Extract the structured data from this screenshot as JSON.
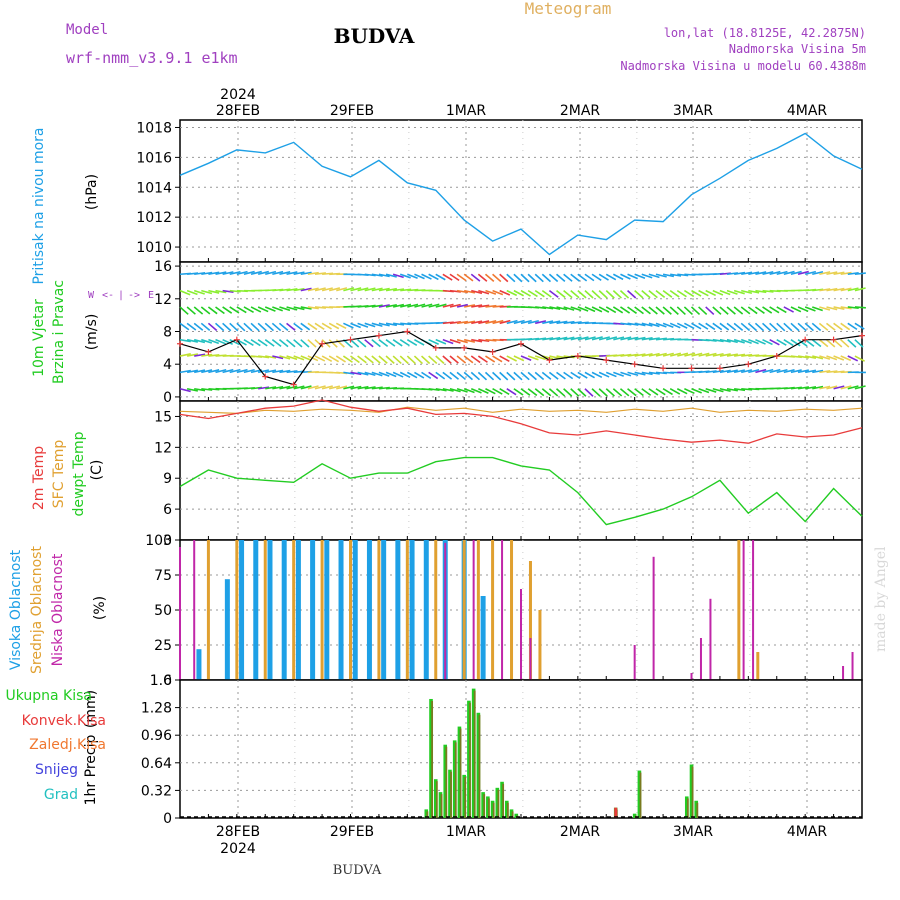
{
  "header": {
    "model_label": "Model",
    "model_name": "wrf-nmm_v3.9.1 e1km",
    "station": "BUDVA",
    "product": "Meteogram",
    "lonlat": "lon,lat (18.8125E, 42.2875N)",
    "elevation": "Nadmorska Visina 5m",
    "model_elevation": "Nadmorska Visina u modelu 60.4388m",
    "footer_station": "BUDVA",
    "watermark": "made by Angel",
    "year_label": "2024"
  },
  "colors": {
    "pressure": "#1ea0e6",
    "t2m": "#e83b3b",
    "sfc": "#e0a030",
    "dewpt": "#22cc22",
    "high_cloud": "#1ea0e6",
    "mid_cloud": "#e0a030",
    "low_cloud": "#c026a8",
    "total_precip": "#22cc22",
    "conv_precip": "#e83b3b",
    "frozen_precip": "#f07830",
    "snow": "#4444dd",
    "grad": "#22c0c0",
    "model_text": "#a040c0",
    "meteogram_title": "#e0b060"
  },
  "chart_data": {
    "type": "line",
    "x_axis": {
      "dates": [
        "28FEB",
        "29FEB",
        "1MAR",
        "2MAR",
        "3MAR",
        "4MAR"
      ],
      "year": "2024",
      "start": "2024-02-27 12:00",
      "end": "2024-03-04 12:00"
    },
    "panels": [
      {
        "id": "pressure",
        "ylabel": "Pritisak na nivou mora",
        "unit": "(hPa)",
        "ylim": [
          1009,
          1018.5
        ],
        "yticks": [
          1010,
          1012,
          1014,
          1016,
          1018
        ],
        "series": [
          {
            "name": "Pritisak na nivou mora",
            "x_hours": [
              0,
              6,
              12,
              18,
              24,
              30,
              36,
              42,
              48,
              54,
              60,
              66,
              72,
              78,
              84,
              90,
              96,
              102,
              108,
              114,
              120,
              126,
              132,
              138,
              144
            ],
            "values": [
              1014.8,
              1015.6,
              1016.5,
              1016.3,
              1017.0,
              1015.4,
              1014.7,
              1015.8,
              1014.3,
              1013.8,
              1011.8,
              1010.4,
              1011.2,
              1009.5,
              1010.8,
              1010.5,
              1011.8,
              1011.7,
              1013.5,
              1014.6,
              1015.8,
              1016.6,
              1017.6,
              1016.1,
              1015.2
            ]
          }
        ]
      },
      {
        "id": "wind",
        "ylabel_1": "10m Vjetar",
        "ylabel_2": "Brzina i Pravac",
        "unit": "(m/s)",
        "direction_labels": [
          "W",
          "<-",
          "|",
          "->",
          "E"
        ],
        "ylim": [
          -0.5,
          16.5
        ],
        "yticks": [
          0,
          4,
          8,
          12,
          16
        ],
        "series": [
          {
            "name": "Brzina",
            "x_hours": [
              0,
              6,
              12,
              18,
              24,
              30,
              36,
              42,
              48,
              54,
              60,
              66,
              72,
              78,
              84,
              90,
              96,
              102,
              108,
              114,
              120,
              126,
              132,
              138,
              144
            ],
            "values": [
              6.5,
              5.5,
              7.0,
              2.5,
              1.5,
              6.5,
              7.0,
              7.5,
              8.0,
              6.0,
              6.0,
              5.5,
              6.5,
              4.5,
              5.0,
              4.5,
              4.0,
              3.5,
              3.5,
              3.5,
              4.0,
              5.0,
              7.0,
              7.0,
              7.5
            ]
          }
        ]
      },
      {
        "id": "temperature",
        "ylabel_1": "2m Temp",
        "ylabel_2": "SFC Temp",
        "ylabel_3": "dewpt Temp",
        "unit": "(C)",
        "ylim": [
          3,
          16.5
        ],
        "yticks": [
          3,
          6,
          9,
          12,
          15
        ],
        "series": [
          {
            "name": "2m Temp",
            "x_hours": [
              0,
              6,
              12,
              18,
              24,
              30,
              36,
              42,
              48,
              54,
              60,
              66,
              72,
              78,
              84,
              90,
              96,
              102,
              108,
              114,
              120,
              126,
              132,
              138,
              144
            ],
            "values": [
              15.2,
              14.8,
              15.3,
              15.8,
              16.0,
              16.6,
              15.9,
              15.5,
              15.8,
              15.2,
              15.3,
              15.0,
              14.3,
              13.4,
              13.2,
              13.6,
              13.2,
              12.8,
              12.5,
              12.7,
              12.4,
              13.3,
              13.0,
              13.2,
              13.9
            ]
          },
          {
            "name": "SFC Temp",
            "x_hours": [
              0,
              6,
              12,
              18,
              24,
              30,
              36,
              42,
              48,
              54,
              60,
              66,
              72,
              78,
              84,
              90,
              96,
              102,
              108,
              114,
              120,
              126,
              132,
              138,
              144
            ],
            "values": [
              15.5,
              15.4,
              15.3,
              15.6,
              15.5,
              15.7,
              15.6,
              15.4,
              15.9,
              15.6,
              15.8,
              15.4,
              15.7,
              15.5,
              15.6,
              15.4,
              15.7,
              15.5,
              15.8,
              15.4,
              15.6,
              15.5,
              15.7,
              15.6,
              15.8
            ]
          },
          {
            "name": "dewpt Temp",
            "x_hours": [
              0,
              6,
              12,
              18,
              24,
              30,
              36,
              42,
              48,
              54,
              60,
              66,
              72,
              78,
              84,
              90,
              96,
              102,
              108,
              114,
              120,
              126,
              132,
              138,
              144
            ],
            "values": [
              8.2,
              9.8,
              9.0,
              8.8,
              8.6,
              10.4,
              9.0,
              9.5,
              9.5,
              10.6,
              11.0,
              11.0,
              10.2,
              9.8,
              7.6,
              4.5,
              5.2,
              6.0,
              7.2,
              8.8,
              5.6,
              7.6,
              4.8,
              8.0,
              5.3
            ]
          }
        ]
      },
      {
        "id": "cloud",
        "ylabel_1": "Visoka Oblacnost",
        "ylabel_2": "Srednja Oblacnost",
        "ylabel_3": "Niska Oblacnost",
        "unit": "(%)",
        "ylim": [
          0,
          100
        ],
        "yticks": [
          0,
          25,
          50,
          75,
          100
        ],
        "series": [
          {
            "name": "Visoka Oblacnost",
            "x_hours": [
              4,
              10,
              13,
              16,
              19,
              22,
              25,
              28,
              31,
              34,
              37,
              40,
              43,
              46,
              49,
              52,
              56,
              60,
              64
            ],
            "values": [
              22,
              72,
              100,
              100,
              100,
              100,
              100,
              100,
              100,
              100,
              100,
              100,
              100,
              100,
              100,
              100,
              100,
              100,
              60
            ]
          },
          {
            "name": "Srednja Oblacnost",
            "x_hours": [
              6,
              12,
              18,
              24,
              30,
              36,
              42,
              48,
              54,
              60,
              63,
              66,
              70,
              74,
              76,
              118,
              122
            ],
            "values": [
              100,
              100,
              100,
              100,
              100,
              100,
              100,
              100,
              100,
              100,
              100,
              100,
              100,
              85,
              50,
              100,
              20
            ]
          },
          {
            "name": "Niska Oblacnost",
            "x_hours": [
              0,
              3,
              56,
              62,
              68,
              72,
              74,
              96,
              100,
              108,
              110,
              112,
              119,
              121,
              140,
              142
            ],
            "values": [
              95,
              100,
              98,
              100,
              100,
              65,
              30,
              25,
              88,
              5,
              30,
              58,
              100,
              100,
              10,
              20
            ]
          }
        ]
      },
      {
        "id": "precip",
        "ylabel": "1hr Precip",
        "unit": "(mm)",
        "ylim": [
          0,
          1.6
        ],
        "yticks": [
          0,
          0.32,
          0.64,
          0.96,
          1.28,
          1.6
        ],
        "legend": [
          "Ukupna Kisa",
          "Konvek.Kisa",
          "Zaledj.Kisa",
          "Snijeg",
          "Grad"
        ],
        "series": [
          {
            "name": "Ukupna Kisa",
            "x_hours": [
              52,
              53,
              54,
              55,
              56,
              57,
              58,
              59,
              60,
              61,
              62,
              63,
              64,
              65,
              66,
              67,
              68,
              69,
              70,
              71,
              72,
              92,
              96,
              97,
              107,
              108,
              109
            ],
            "values": [
              0.1,
              1.38,
              0.45,
              0.3,
              0.85,
              0.56,
              0.9,
              1.06,
              0.5,
              1.36,
              1.5,
              1.22,
              0.3,
              0.25,
              0.2,
              0.35,
              0.42,
              0.2,
              0.1,
              0.05,
              0.0,
              0.12,
              0.05,
              0.55,
              0.25,
              0.62,
              0.2
            ]
          },
          {
            "name": "Konvek.Kisa",
            "x_hours": [
              92
            ],
            "values": [
              0.12
            ]
          }
        ]
      }
    ]
  }
}
